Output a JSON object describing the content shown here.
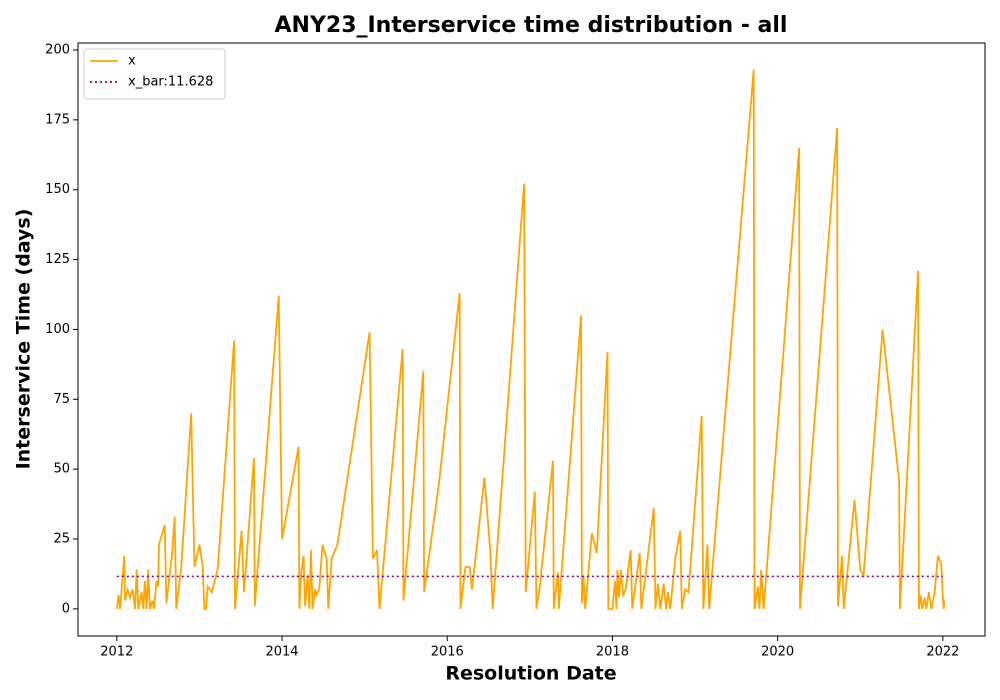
{
  "chart_data": {
    "type": "line",
    "title": "ANY23_Interservice time distribution - all",
    "xlabel": "Resolution Date",
    "ylabel": "Interservice Time (days)",
    "xlim": [
      2011.53,
      2022.51
    ],
    "ylim": [
      -9.7,
      202.5
    ],
    "xticks": [
      2012,
      2014,
      2016,
      2018,
      2020,
      2022
    ],
    "yticks": [
      0,
      25,
      50,
      75,
      100,
      125,
      150,
      175,
      200
    ],
    "legend": "upper left",
    "series": [
      {
        "name": "x",
        "color": "#ffa500",
        "linestyle": "solid",
        "x": [
          2012.0,
          2012.02,
          2012.04,
          2012.09,
          2012.1,
          2012.13,
          2012.16,
          2012.19,
          2012.22,
          2012.24,
          2012.26,
          2012.3,
          2012.32,
          2012.34,
          2012.36,
          2012.38,
          2012.4,
          2012.43,
          2012.45,
          2012.48,
          2012.5,
          2012.51,
          2012.58,
          2012.6,
          2012.67,
          2012.7,
          2012.72,
          2012.78,
          2012.9,
          2012.94,
          2013.0,
          2013.04,
          2013.06,
          2013.08,
          2013.1,
          2013.15,
          2013.22,
          2013.42,
          2013.43,
          2013.51,
          2013.54,
          2013.66,
          2013.67,
          2013.96,
          2014.0,
          2014.2,
          2014.21,
          2014.23,
          2014.26,
          2014.28,
          2014.31,
          2014.33,
          2014.35,
          2014.37,
          2014.4,
          2014.42,
          2014.45,
          2014.49,
          2014.54,
          2014.56,
          2014.6,
          2014.67,
          2015.06,
          2015.1,
          2015.15,
          2015.18,
          2015.46,
          2015.47,
          2015.71,
          2015.72,
          2015.9,
          2016.15,
          2016.16,
          2016.22,
          2016.27,
          2016.3,
          2016.45,
          2016.52,
          2016.55,
          2016.93,
          2016.95,
          2017.06,
          2017.08,
          2017.12,
          2017.28,
          2017.29,
          2017.34,
          2017.35,
          2017.62,
          2017.63,
          2017.65,
          2017.67,
          2017.75,
          2017.81,
          2017.94,
          2017.95,
          2018.0,
          2018.03,
          2018.05,
          2018.06,
          2018.08,
          2018.1,
          2018.13,
          2018.16,
          2018.22,
          2018.24,
          2018.27,
          2018.33,
          2018.35,
          2018.5,
          2018.52,
          2018.55,
          2018.58,
          2018.62,
          2018.65,
          2018.67,
          2018.7,
          2018.76,
          2018.82,
          2018.84,
          2018.88,
          2018.92,
          2019.08,
          2019.1,
          2019.15,
          2019.17,
          2019.71,
          2019.72,
          2019.76,
          2019.78,
          2019.8,
          2019.83,
          2020.26,
          2020.27,
          2020.72,
          2020.73,
          2020.78,
          2020.8,
          2020.93,
          2021.0,
          2021.04,
          2021.27,
          2021.47,
          2021.48,
          2021.7,
          2021.71,
          2021.73,
          2021.75,
          2021.78,
          2021.8,
          2021.83,
          2021.86,
          2021.9,
          2021.94,
          2021.98,
          2022.0,
          2022.01,
          2022.02
        ],
        "values": [
          0,
          5,
          0,
          19,
          3,
          7,
          4,
          7,
          0,
          14,
          0,
          6,
          0,
          10,
          0,
          14,
          0,
          3,
          0,
          10,
          8,
          23,
          30,
          2,
          20,
          33,
          0,
          15,
          70,
          15,
          23,
          15,
          0,
          0,
          8,
          6,
          14,
          96,
          0,
          28,
          6,
          54,
          1,
          112,
          25,
          58,
          0,
          12,
          19,
          1,
          12,
          0,
          21,
          0,
          7,
          5,
          7,
          23,
          18,
          0,
          18,
          23,
          99,
          18,
          21,
          0,
          93,
          3,
          85,
          6,
          45,
          113,
          0,
          15,
          15,
          7,
          47,
          21,
          0,
          152,
          6,
          42,
          0,
          8,
          53,
          0,
          13,
          0,
          105,
          2,
          12,
          0,
          27,
          20,
          92,
          0,
          0,
          10,
          0,
          14,
          4,
          14,
          5,
          7,
          21,
          0,
          7,
          20,
          0,
          36,
          0,
          9,
          0,
          9,
          0,
          6,
          0,
          18,
          28,
          0,
          7,
          6,
          69,
          0,
          23,
          0,
          193,
          0,
          8,
          0,
          14,
          0,
          165,
          0,
          172,
          1,
          19,
          0,
          39,
          14,
          12,
          100,
          46,
          0,
          121,
          0,
          5,
          0,
          4,
          0,
          6,
          0,
          6,
          19,
          16,
          4,
          0,
          3
        ]
      },
      {
        "name": "x_bar:11.628",
        "color": "#800080",
        "linestyle": "dotted",
        "x": [
          2012,
          2022
        ],
        "values": [
          11.628,
          11.628
        ]
      }
    ]
  }
}
